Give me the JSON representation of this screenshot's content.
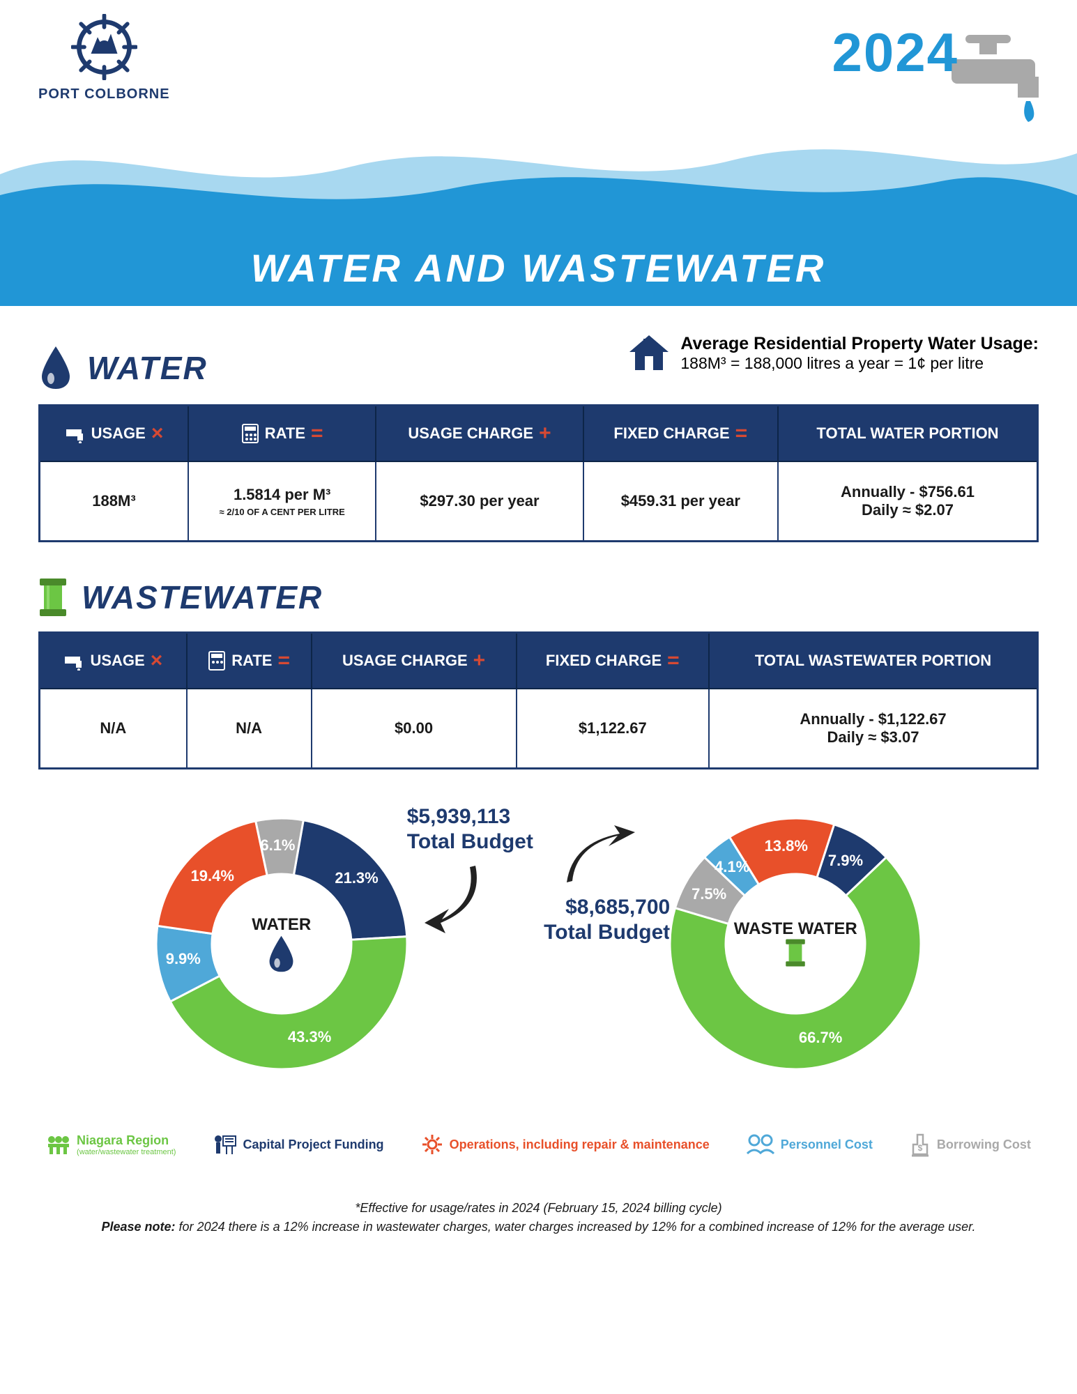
{
  "brand": {
    "name": "PORT COLBORNE"
  },
  "year": "2024",
  "banner_title": "WATER AND WASTEWATER",
  "colors": {
    "navy": "#1e3a6e",
    "blue_accent": "#2196d6",
    "light_blue": "#a8d8f0",
    "red_op": "#d64933",
    "green": "#6cc644",
    "grey": "#a9a9a9",
    "orange": "#e8502a",
    "cyan": "#4fa8d8"
  },
  "avg_usage": {
    "title": "Average Residential Property Water Usage:",
    "sub": "188M³ = 188,000 litres a year = 1¢ per litre"
  },
  "sections": {
    "water": {
      "title": "WATER",
      "headers": [
        "USAGE",
        "RATE",
        "USAGE CHARGE",
        "FIXED CHARGE",
        "TOTAL WATER PORTION"
      ],
      "ops": [
        "×",
        "=",
        "+",
        "="
      ],
      "row": {
        "usage": "188M³",
        "rate": "1.5814 per M³",
        "rate_sub": "≈ 2/10 OF A CENT PER LITRE",
        "usage_charge": "$297.30 per year",
        "fixed_charge": "$459.31 per year",
        "total_a": "Annually - $756.61",
        "total_b": "Daily ≈ $2.07"
      }
    },
    "wastewater": {
      "title": "WASTEWATER",
      "headers": [
        "USAGE",
        "RATE",
        "USAGE CHARGE",
        "FIXED CHARGE",
        "TOTAL WASTEWATER PORTION"
      ],
      "ops": [
        "×",
        "=",
        "+",
        "="
      ],
      "row": {
        "usage": "N/A",
        "rate": "N/A",
        "rate_sub": "",
        "usage_charge": "$0.00",
        "fixed_charge": "$1,122.67",
        "total_a": "Annually - $1,122.67",
        "total_b": "Daily ≈ $3.07"
      }
    }
  },
  "charts": {
    "water": {
      "center_label": "WATER",
      "budget": "$5,939,113",
      "budget_label": "Total Budget",
      "slices": [
        {
          "label": "21.3%",
          "value": 21.3,
          "color": "#1e3a6e"
        },
        {
          "label": "43.3%",
          "value": 43.3,
          "color": "#6cc644"
        },
        {
          "label": "9.9%",
          "value": 9.9,
          "color": "#4fa8d8"
        },
        {
          "label": "19.4%",
          "value": 19.4,
          "color": "#e8502a"
        },
        {
          "label": "6.1%",
          "value": 6.1,
          "color": "#a9a9a9"
        }
      ]
    },
    "wastewater": {
      "center_label": "WASTE WATER",
      "budget": "$8,685,700",
      "budget_label": "Total Budget",
      "slices": [
        {
          "label": "7.9%",
          "value": 7.9,
          "color": "#1e3a6e"
        },
        {
          "label": "66.7%",
          "value": 66.7,
          "color": "#6cc644"
        },
        {
          "label": "7.5%",
          "value": 7.5,
          "color": "#a9a9a9"
        },
        {
          "label": "4.1%",
          "value": 4.1,
          "color": "#4fa8d8"
        },
        {
          "label": "13.8%",
          "value": 13.8,
          "color": "#e8502a"
        }
      ]
    }
  },
  "legend": [
    {
      "label": "Niagara Region",
      "sub": "(water/wastewater treatment)",
      "color": "#6cc644"
    },
    {
      "label": "Capital Project Funding",
      "sub": "",
      "color": "#1e3a6e"
    },
    {
      "label": "Operations, including repair & maintenance",
      "sub": "",
      "color": "#e8502a"
    },
    {
      "label": "Personnel Cost",
      "sub": "",
      "color": "#4fa8d8"
    },
    {
      "label": "Borrowing Cost",
      "sub": "",
      "color": "#a9a9a9"
    }
  ],
  "footnote": {
    "line1": "*Effective for usage/rates in 2024 (February 15, 2024 billing cycle)",
    "line2": "Please note: for 2024 there is a 12% increase in wastewater charges, water charges increased by 12% for a combined increase of 12% for the average user."
  }
}
